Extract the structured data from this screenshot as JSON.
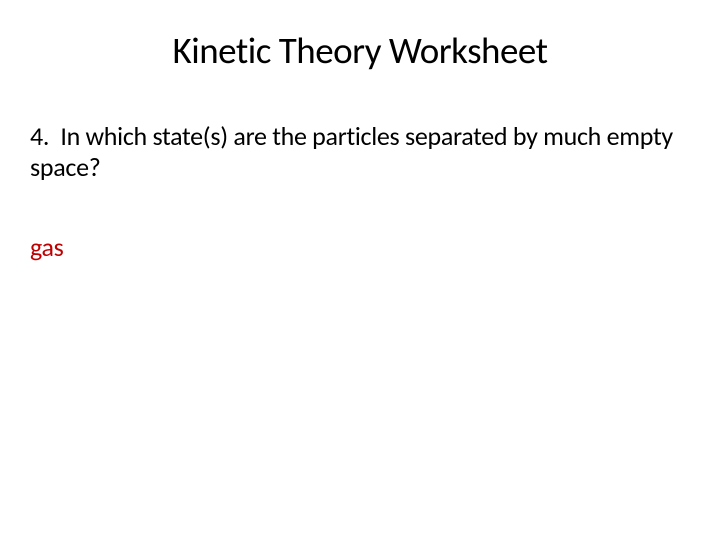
{
  "slide": {
    "title": "Kinetic Theory Worksheet",
    "question_number": "4.",
    "question_text": "In which state(s) are the particles separated by much empty space?",
    "answer": "gas",
    "colors": {
      "background": "#ffffff",
      "title_color": "#000000",
      "question_color": "#000000",
      "answer_color": "#c00000"
    },
    "typography": {
      "title_fontsize": 37,
      "body_fontsize": 26,
      "font_family": "Calibri"
    }
  }
}
